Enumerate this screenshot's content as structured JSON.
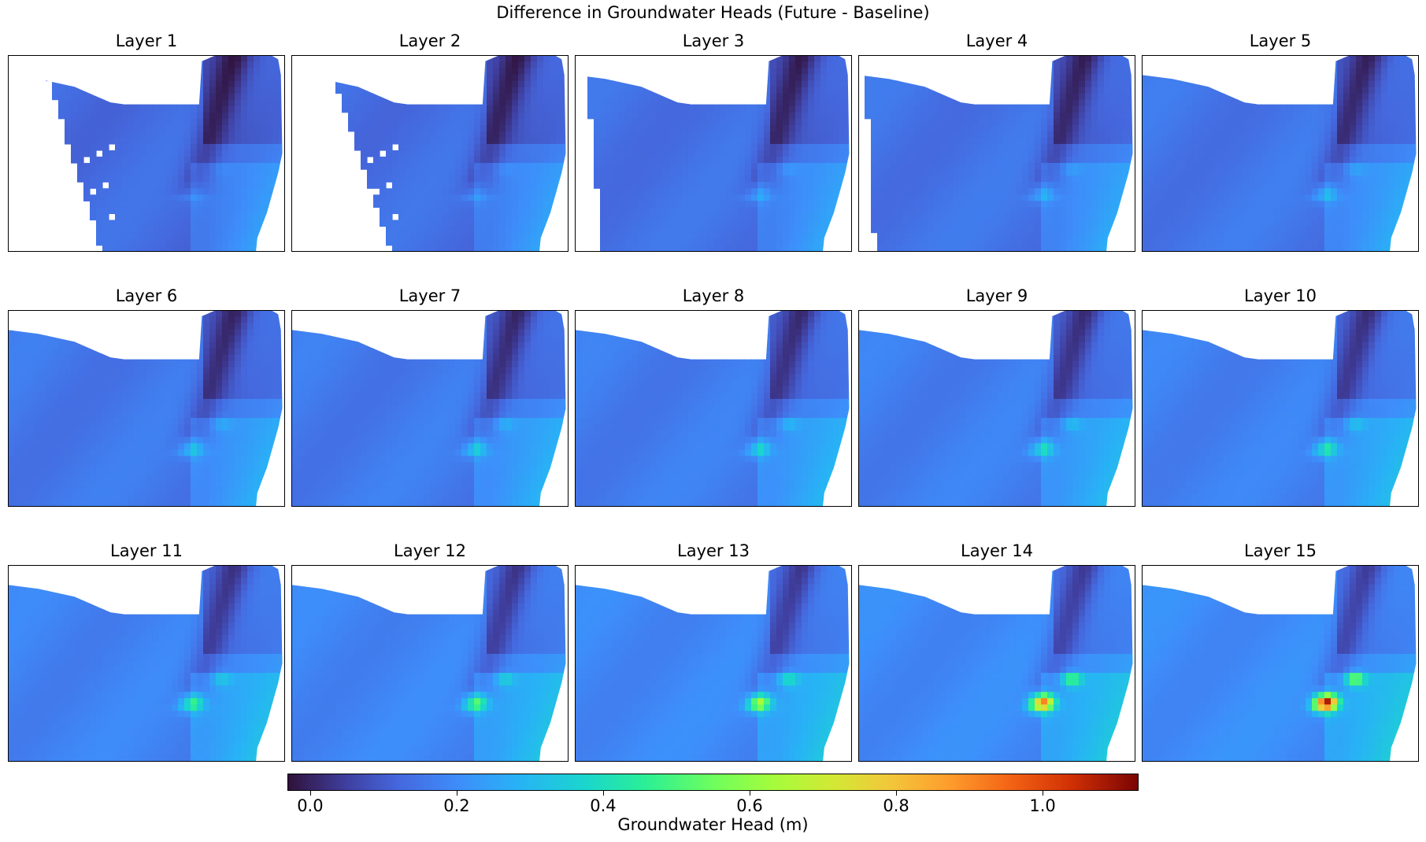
{
  "chart_data": {
    "type": "heatmap",
    "title": "Difference in Groundwater Heads (Future - Baseline)",
    "panels": [
      {
        "title": "Layer 1",
        "peak": 0.28,
        "white_band": 0.34,
        "islands": true
      },
      {
        "title": "Layer 2",
        "peak": 0.3,
        "white_band": 0.36,
        "islands": true
      },
      {
        "title": "Layer 3",
        "peak": 0.34,
        "white_band": 0.1,
        "islands": false
      },
      {
        "title": "Layer 4",
        "peak": 0.36,
        "white_band": 0.06,
        "islands": false
      },
      {
        "title": "Layer 5",
        "peak": 0.38,
        "white_band": 0.0,
        "islands": false
      },
      {
        "title": "Layer 6",
        "peak": 0.4,
        "white_band": 0.0,
        "islands": false
      },
      {
        "title": "Layer 7",
        "peak": 0.42,
        "white_band": 0.0,
        "islands": false
      },
      {
        "title": "Layer 8",
        "peak": 0.44,
        "white_band": 0.0,
        "islands": false
      },
      {
        "title": "Layer 9",
        "peak": 0.46,
        "white_band": 0.0,
        "islands": false
      },
      {
        "title": "Layer 10",
        "peak": 0.48,
        "white_band": 0.0,
        "islands": false
      },
      {
        "title": "Layer 11",
        "peak": 0.52,
        "white_band": 0.0,
        "islands": false
      },
      {
        "title": "Layer 12",
        "peak": 0.56,
        "white_band": 0.0,
        "islands": false
      },
      {
        "title": "Layer 13",
        "peak": 0.68,
        "white_band": 0.0,
        "islands": false
      },
      {
        "title": "Layer 14",
        "peak": 0.95,
        "white_band": 0.0,
        "islands": false
      },
      {
        "title": "Layer 15",
        "peak": 1.12,
        "white_band": 0.0,
        "islands": false
      }
    ],
    "colorbar": {
      "label": "Groundwater Head (m)",
      "colormap": "turbo",
      "range": [
        -0.03,
        1.13
      ],
      "ticks": [
        0.0,
        0.2,
        0.4,
        0.6,
        0.8,
        1.0
      ],
      "tick_labels": [
        "0.0",
        "0.2",
        "0.4",
        "0.6",
        "0.8",
        "1.0"
      ]
    },
    "xlabel": "",
    "ylabel": ""
  }
}
